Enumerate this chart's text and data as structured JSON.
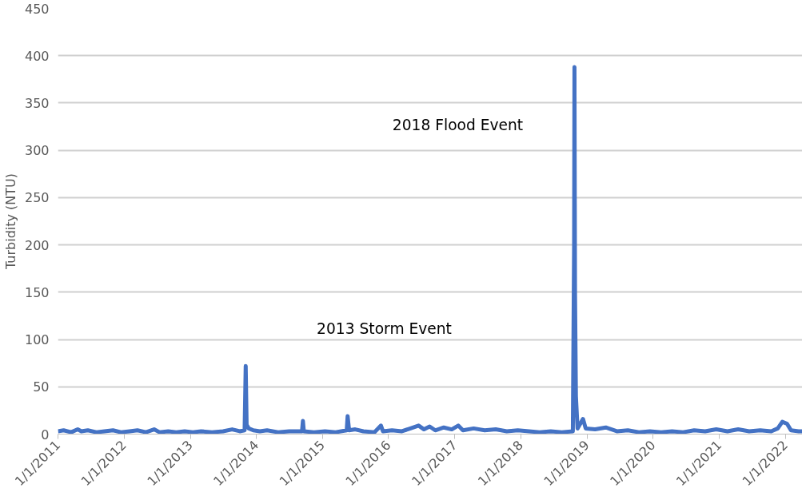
{
  "chart_data": {
    "type": "line",
    "ylabel": "Turbidity (NTU)",
    "x": [
      "2011-01-01",
      "2011-02-01",
      "2011-03-15",
      "2011-04-20",
      "2011-05-10",
      "2011-06-15",
      "2011-08-01",
      "2011-09-15",
      "2011-11-01",
      "2011-12-15",
      "2012-02-01",
      "2012-03-15",
      "2012-05-01",
      "2012-06-15",
      "2012-07-15",
      "2012-09-01",
      "2012-10-15",
      "2012-12-01",
      "2013-01-15",
      "2013-03-01",
      "2013-05-01",
      "2013-07-01",
      "2013-08-20",
      "2013-10-01",
      "2013-10-28",
      "2013-11-03",
      "2013-11-08",
      "2013-11-20",
      "2013-12-15",
      "2014-01-20",
      "2014-03-01",
      "2014-05-01",
      "2014-07-01",
      "2014-09-10",
      "2014-09-15",
      "2014-09-20",
      "2014-11-15",
      "2015-01-15",
      "2015-03-15",
      "2015-05-15",
      "2015-05-20",
      "2015-05-28",
      "2015-07-01",
      "2015-08-15",
      "2015-10-15",
      "2015-11-20",
      "2015-12-01",
      "2016-01-20",
      "2016-03-15",
      "2016-05-01",
      "2016-06-15",
      "2016-07-15",
      "2016-08-15",
      "2016-09-15",
      "2016-11-01",
      "2016-12-15",
      "2017-01-20",
      "2017-02-15",
      "2017-04-15",
      "2017-06-15",
      "2017-08-15",
      "2017-10-15",
      "2017-12-15",
      "2018-02-15",
      "2018-04-15",
      "2018-06-15",
      "2018-08-15",
      "2018-10-15",
      "2018-10-22",
      "2018-10-24",
      "2018-10-27",
      "2018-11-01",
      "2018-11-10",
      "2018-12-10",
      "2018-12-25",
      "2019-02-15",
      "2019-04-15",
      "2019-06-15",
      "2019-08-15",
      "2019-10-15",
      "2019-12-15",
      "2020-02-15",
      "2020-04-15",
      "2020-06-15",
      "2020-08-15",
      "2020-10-15",
      "2020-12-15",
      "2021-02-15",
      "2021-04-15",
      "2021-06-15",
      "2021-08-15",
      "2021-10-15",
      "2021-11-20",
      "2021-12-15",
      "2022-01-10",
      "2022-02-01",
      "2022-03-15",
      "2022-04-05"
    ],
    "series": [
      {
        "color": "#4472c4",
        "values": [
          3,
          4,
          2,
          5,
          3,
          4,
          2,
          3,
          4,
          2,
          3,
          4,
          2,
          5,
          2,
          3,
          2,
          3,
          2,
          3,
          2,
          3,
          5,
          3,
          4,
          72,
          10,
          6,
          4,
          3,
          4,
          2,
          3,
          3,
          14,
          3,
          2,
          3,
          2,
          4,
          19,
          4,
          5,
          3,
          2,
          9,
          3,
          4,
          3,
          6,
          9,
          5,
          8,
          4,
          7,
          5,
          9,
          4,
          6,
          4,
          5,
          3,
          4,
          3,
          2,
          3,
          2,
          3,
          200,
          388,
          150,
          40,
          6,
          16,
          6,
          5,
          7,
          3,
          4,
          2,
          3,
          2,
          3,
          2,
          4,
          3,
          5,
          3,
          5,
          3,
          4,
          3,
          6,
          13,
          11,
          4,
          3,
          3
        ]
      }
    ],
    "xlim": [
      "2011-01-01",
      "2022-04-05"
    ],
    "xticks": [
      {
        "value": "2011-01-01",
        "label": "1/1/2011"
      },
      {
        "value": "2012-01-01",
        "label": "1/1/2012"
      },
      {
        "value": "2013-01-01",
        "label": "1/1/2013"
      },
      {
        "value": "2014-01-01",
        "label": "1/1/2014"
      },
      {
        "value": "2015-01-01",
        "label": "1/1/2015"
      },
      {
        "value": "2016-01-01",
        "label": "1/1/2016"
      },
      {
        "value": "2017-01-01",
        "label": "1/1/2017"
      },
      {
        "value": "2018-01-01",
        "label": "1/1/2018"
      },
      {
        "value": "2019-01-01",
        "label": "1/1/2019"
      },
      {
        "value": "2020-01-01",
        "label": "1/1/2020"
      },
      {
        "value": "2021-01-01",
        "label": "1/1/2021"
      },
      {
        "value": "2022-01-01",
        "label": "1/1/2022"
      }
    ],
    "ylim": [
      0,
      450
    ],
    "yticks": [
      0,
      50,
      100,
      150,
      200,
      250,
      300,
      350,
      400,
      450
    ],
    "grid": "y",
    "marker": "none",
    "line_style": "solid",
    "annotations": [
      "2018 Flood Event",
      "2013 Storm Event"
    ]
  }
}
